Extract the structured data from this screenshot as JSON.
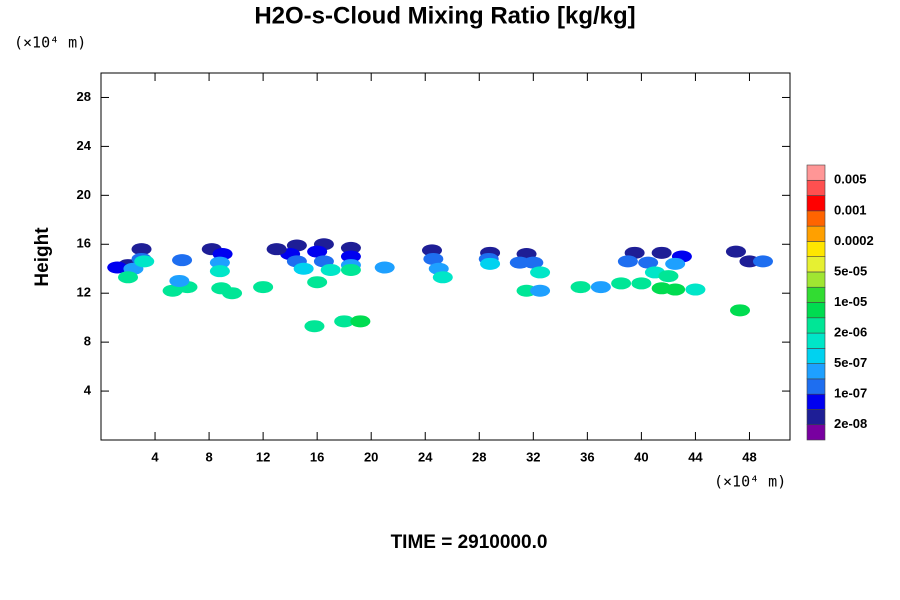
{
  "chart_data": {
    "type": "contour",
    "title": "H2O-s-Cloud Mixing Ratio [kg/kg]",
    "y_label": "Height",
    "x_unit": "(×10⁴ m)",
    "y_unit": "(×10⁴ m)",
    "annotation": "TIME = 2910000.0",
    "xlim": [
      0,
      51
    ],
    "ylim": [
      0,
      30
    ],
    "xticks": [
      4,
      8,
      12,
      16,
      20,
      24,
      28,
      32,
      36,
      40,
      44,
      48
    ],
    "yticks": [
      4,
      8,
      12,
      16,
      20,
      24,
      28
    ],
    "grid": false,
    "colorbar": {
      "colors": [
        "#7800a0",
        "#1e1e96",
        "#0000f0",
        "#1e6ef0",
        "#1ea0ff",
        "#00d2f0",
        "#00e6c8",
        "#00e696",
        "#00dc50",
        "#32dc32",
        "#a0e632",
        "#e6f032",
        "#ffe600",
        "#ffa000",
        "#ff6400",
        "#ff0000",
        "#ff5050",
        "#ff9696"
      ],
      "levels": [
        {
          "value": 2e-08,
          "label": "2e-08"
        },
        {
          "value": 1e-07,
          "label": "1e-07"
        },
        {
          "value": 5e-07,
          "label": "5e-07"
        },
        {
          "value": 2e-06,
          "label": "2e-06"
        },
        {
          "value": 1e-05,
          "label": "1e-05"
        },
        {
          "value": 5e-05,
          "label": "5e-05"
        },
        0.0002,
        0.001,
        0.005
      ]
    },
    "cells": {
      "x": [
        3,
        2,
        1.2,
        3,
        2.4,
        3.2,
        2,
        8.2,
        9,
        8.8,
        8.8,
        6,
        14.5,
        16.5,
        18.5,
        14,
        16,
        18.5,
        14.5,
        16.5,
        18.5,
        15,
        17,
        18.5,
        16,
        24.5,
        24.6,
        25,
        25.3,
        28.8,
        28.7,
        28.8,
        31.5,
        31,
        32,
        32.5,
        39.5,
        41.5,
        43,
        39,
        40.5,
        42.5,
        41,
        42,
        40,
        41.5,
        42.5,
        38.5,
        44,
        48,
        49,
        47,
        5.3,
        6.4,
        8.9,
        9.7,
        12,
        21,
        31.5,
        32.5,
        35.5,
        37,
        15.8,
        18,
        19.2,
        47.3,
        5.8,
        13
      ],
      "y": [
        15.6,
        14.3,
        14.1,
        14.8,
        14,
        14.6,
        13.3,
        15.6,
        15.2,
        14.5,
        13.8,
        14.7,
        15.9,
        16,
        15.7,
        15.2,
        15.4,
        15,
        14.6,
        14.6,
        14.3,
        14,
        13.9,
        13.9,
        12.9,
        15.5,
        14.8,
        14,
        13.3,
        15.3,
        14.8,
        14.4,
        15.2,
        14.5,
        14.5,
        13.7,
        15.3,
        15.3,
        15,
        14.6,
        14.5,
        14.4,
        13.7,
        13.4,
        12.8,
        12.4,
        12.3,
        12.8,
        12.3,
        14.6,
        14.6,
        15.4,
        12.2,
        12.5,
        12.4,
        12,
        12.5,
        14.1,
        12.2,
        12.2,
        12.5,
        12.5,
        9.3,
        9.7,
        9.7,
        10.6,
        13,
        15.6
      ],
      "values": [
        2e-08,
        2e-08,
        5e-08,
        1e-07,
        3e-07,
        1e-06,
        3e-06,
        2e-08,
        5e-08,
        3e-07,
        1e-06,
        1e-07,
        2e-08,
        2e-08,
        2e-08,
        5e-08,
        5e-08,
        5e-08,
        2e-07,
        2e-07,
        3e-07,
        6e-07,
        1e-06,
        2e-06,
        2e-06,
        2e-08,
        1e-07,
        4e-07,
        1e-06,
        2e-08,
        1e-07,
        5e-07,
        2e-08,
        1e-07,
        2e-07,
        1e-06,
        2e-08,
        2e-08,
        5e-08,
        1e-07,
        2e-07,
        3e-07,
        1e-06,
        2e-06,
        3e-06,
        8e-06,
        6e-06,
        3e-06,
        1e-06,
        2e-08,
        1e-07,
        2e-08,
        3e-06,
        3e-06,
        3e-06,
        3e-06,
        3e-06,
        3e-07,
        2e-06,
        3e-07,
        3e-06,
        3e-07,
        3e-06,
        3e-06,
        5e-06,
        8e-06,
        3e-07,
        2e-08
      ]
    }
  }
}
